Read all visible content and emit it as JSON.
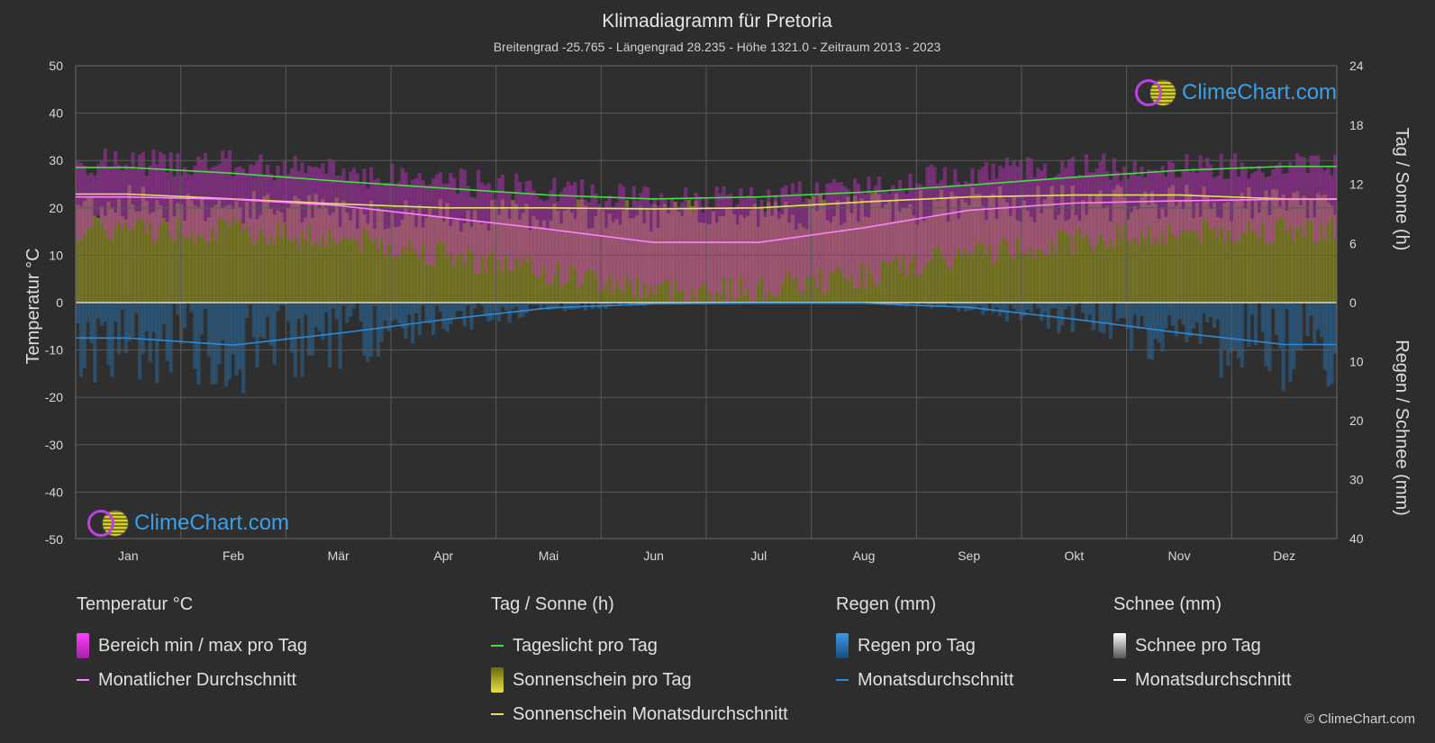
{
  "title": "Klimadiagramm für Pretoria",
  "subtitle": "Breitengrad -25.765 - Längengrad 28.235 - Höhe 1321.0 - Zeitraum 2013 - 2023",
  "logo_text": "ClimeChart.com",
  "copyright": "© ClimeChart.com",
  "legend": {
    "temp_header": "Temperatur °C",
    "temp_range": "Bereich min / max pro Tag",
    "temp_avg": "Monatlicher Durchschnitt",
    "sun_header": "Tag / Sonne (h)",
    "daylight": "Tageslicht pro Tag",
    "sunshine": "Sonnenschein pro Tag",
    "sunshine_avg": "Sonnenschein Monatsdurchschnitt",
    "rain_header": "Regen (mm)",
    "rain_day": "Regen pro Tag",
    "rain_avg": "Monatsdurchschnitt",
    "snow_header": "Schnee (mm)",
    "snow_day": "Schnee pro Tag",
    "snow_avg": "Monatsdurchschnitt"
  },
  "colors": {
    "background": "#2d2d2d",
    "daylight": "#44dd44",
    "sunshine_avg": "#e8e060",
    "temp_avg": "#ff80ff",
    "rain": "#2a8ad8",
    "temp_range": "#d030d0",
    "sunshine": "#a0a020"
  },
  "chart_data": {
    "type": "line",
    "months": [
      "Jan",
      "Feb",
      "Mär",
      "Apr",
      "Mai",
      "Jun",
      "Jul",
      "Aug",
      "Sep",
      "Okt",
      "Nov",
      "Dez"
    ],
    "y_left_label": "Temperatur °C",
    "y_left_ticks": [
      "50",
      "40",
      "30",
      "20",
      "10",
      "0",
      "-10",
      "-20",
      "-30",
      "-40",
      "-50"
    ],
    "y_left_range": [
      -50,
      50
    ],
    "y_right_top_label": "Tag / Sonne (h)",
    "y_right_top_ticks": [
      "24",
      "18",
      "12",
      "6",
      "0"
    ],
    "y_right_top_range": [
      0,
      24
    ],
    "y_right_bottom_label": "Regen / Schnee (mm)",
    "y_right_bottom_ticks": [
      "10",
      "20",
      "30",
      "40"
    ],
    "y_right_bottom_range": [
      0,
      40
    ],
    "grid": true,
    "series": [
      {
        "name": "Tageslicht pro Tag",
        "unit": "h",
        "values": [
          13.7,
          13.1,
          12.3,
          11.6,
          10.9,
          10.5,
          10.7,
          11.2,
          11.9,
          12.7,
          13.4,
          13.8
        ]
      },
      {
        "name": "Sonnenschein Monatsdurchschnitt",
        "unit": "h",
        "values": [
          11.0,
          10.5,
          10.0,
          9.6,
          9.6,
          9.5,
          9.6,
          10.2,
          10.7,
          10.9,
          10.9,
          10.5
        ]
      },
      {
        "name": "Monatlicher Durchschnitt",
        "unit": "°C",
        "values": [
          22.3,
          21.8,
          20.5,
          18.0,
          15.5,
          12.7,
          12.7,
          15.8,
          19.5,
          21.0,
          21.5,
          21.8
        ]
      },
      {
        "name": "Monatsdurchschnitt",
        "unit": "mm",
        "values": [
          6.0,
          7.2,
          5.2,
          2.9,
          0.9,
          0.2,
          0.1,
          0.1,
          0.8,
          2.8,
          5.1,
          7.1
        ]
      }
    ],
    "temp_max_avg": [
      28.5,
      28.0,
      26.5,
      24.5,
      22.5,
      20.5,
      20.5,
      23.5,
      26.5,
      27.5,
      27.5,
      28.0
    ],
    "temp_min_avg": [
      17.0,
      16.5,
      15.0,
      11.5,
      7.5,
      4.0,
      4.0,
      7.0,
      11.5,
      14.5,
      16.0,
      16.5
    ]
  }
}
